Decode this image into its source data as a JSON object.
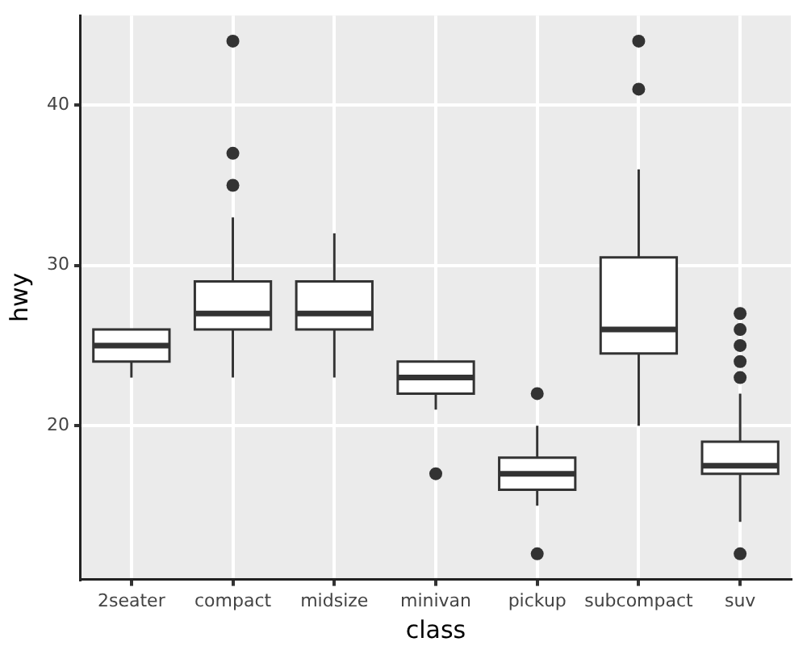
{
  "chart_data": {
    "type": "box",
    "xlabel": "class",
    "ylabel": "hwy",
    "categories": [
      "2seater",
      "compact",
      "midsize",
      "minivan",
      "pickup",
      "subcompact",
      "suv"
    ],
    "boxes": [
      {
        "low": 23,
        "q1": 24,
        "median": 25,
        "q3": 26,
        "high": 26
      },
      {
        "low": 23,
        "q1": 26,
        "median": 27,
        "q3": 29,
        "high": 33,
        "outliers": [
          35,
          37,
          44
        ]
      },
      {
        "low": 23,
        "q1": 26,
        "median": 27,
        "q3": 29,
        "high": 32
      },
      {
        "low": 21,
        "q1": 22,
        "median": 23,
        "q3": 24,
        "high": 24,
        "outliers": [
          17
        ]
      },
      {
        "low": 15,
        "q1": 16,
        "median": 17,
        "q3": 18,
        "high": 20,
        "outliers": [
          12,
          22
        ]
      },
      {
        "low": 20,
        "q1": 24.5,
        "median": 26,
        "q3": 30.5,
        "high": 36,
        "outliers": [
          41,
          44
        ]
      },
      {
        "low": 14,
        "q1": 17,
        "median": 17.5,
        "q3": 19,
        "high": 22,
        "outliers": [
          12,
          23,
          24,
          25,
          26,
          27
        ]
      }
    ],
    "ylim": [
      10.4,
      45.6
    ],
    "yticks": [
      20,
      30,
      40
    ],
    "grid": true
  }
}
